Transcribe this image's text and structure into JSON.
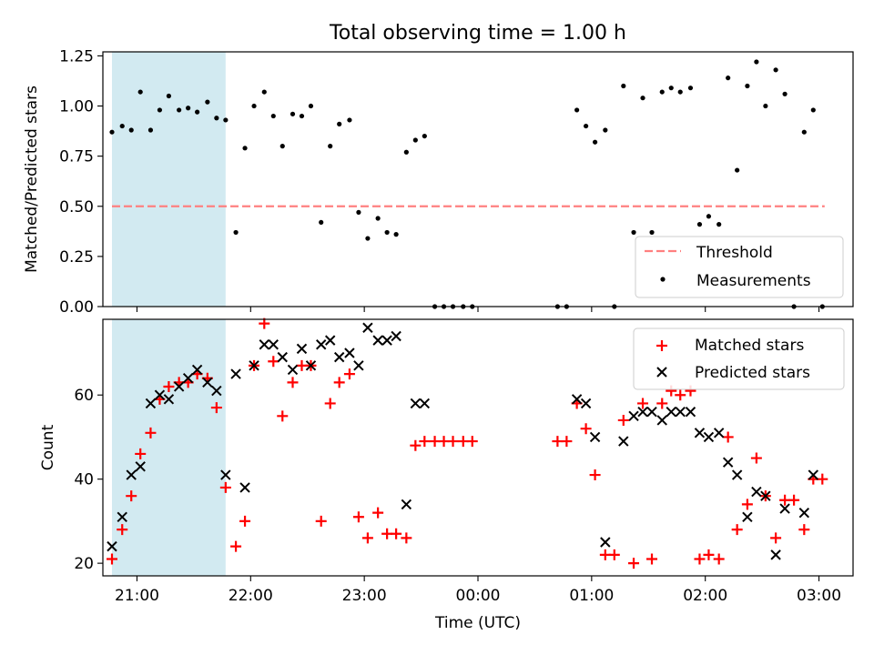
{
  "figure_title": "Total observing time = 1.00 h",
  "chart_data": [
    {
      "type": "scatter",
      "panel": "top",
      "title": "Total observing time = 1.00 h",
      "xlabel": "",
      "ylabel": "Matched/Predicted stars",
      "xlim": [
        -3.3,
        3.3
      ],
      "ylim": [
        0,
        1.27
      ],
      "yticks": [
        0.0,
        0.25,
        0.5,
        0.75,
        1.0,
        1.25
      ],
      "ytick_labels": [
        "0.00",
        "0.25",
        "0.50",
        "0.75",
        "1.00",
        "1.25"
      ],
      "xticks": [
        -3,
        -2,
        -1,
        0,
        1,
        2,
        3
      ],
      "shaded_span": {
        "x": [
          -3.22,
          -2.22
        ],
        "color": "#add8e6"
      },
      "legend": {
        "position": "lower right",
        "entries": [
          "Threshold",
          "Measurements"
        ]
      },
      "threshold": {
        "name": "Threshold",
        "y": 0.5,
        "x": [
          -3.22,
          3.05
        ],
        "color": "#ff8080",
        "style": "dashed"
      },
      "series": [
        {
          "name": "Measurements",
          "color": "#000000",
          "marker": "dot",
          "x": [
            -3.22,
            -3.13,
            -3.05,
            -2.97,
            -2.88,
            -2.8,
            -2.72,
            -2.63,
            -2.55,
            -2.47,
            -2.38,
            -2.3,
            -2.22,
            -2.13,
            -2.05,
            -1.97,
            -1.88,
            -1.8,
            -1.72,
            -1.63,
            -1.55,
            -1.47,
            -1.38,
            -1.3,
            -1.22,
            -1.13,
            -1.05,
            -0.97,
            -0.88,
            -0.8,
            -0.72,
            -0.63,
            -0.55,
            -0.47,
            -0.38,
            -0.3,
            -0.22,
            -0.13,
            -0.05,
            0.7,
            0.78,
            0.87,
            0.95,
            1.03,
            1.12,
            1.2,
            1.28,
            1.37,
            1.45,
            1.53,
            1.62,
            1.7,
            1.78,
            1.87,
            1.95,
            2.03,
            2.12,
            2.2,
            2.28,
            2.37,
            2.45,
            2.53,
            2.62,
            2.7,
            2.78,
            2.87,
            2.95,
            3.03
          ],
          "y": [
            0.87,
            0.9,
            0.88,
            1.07,
            0.88,
            0.98,
            1.05,
            0.98,
            0.99,
            0.97,
            1.02,
            0.94,
            0.93,
            0.37,
            0.79,
            1.0,
            1.07,
            0.95,
            0.8,
            0.96,
            0.95,
            1.0,
            0.42,
            0.8,
            0.91,
            0.93,
            0.47,
            0.34,
            0.44,
            0.37,
            0.36,
            0.77,
            0.83,
            0.85,
            0.0,
            0.0,
            0.0,
            0.0,
            0.0,
            0.0,
            0.0,
            0.98,
            0.9,
            0.82,
            0.88,
            0.0,
            1.1,
            0.37,
            1.04,
            0.37,
            1.07,
            1.09,
            1.07,
            1.09,
            0.41,
            0.45,
            0.41,
            1.14,
            0.68,
            1.1,
            1.22,
            1.0,
            1.18,
            1.06,
            0.0,
            0.87,
            0.98,
            0.0
          ]
        }
      ]
    },
    {
      "type": "scatter",
      "panel": "bottom",
      "xlabel": "Time (UTC)",
      "ylabel": "Count",
      "xlim": [
        -3.3,
        3.3
      ],
      "ylim": [
        17,
        78
      ],
      "yticks": [
        20,
        40,
        60
      ],
      "ytick_labels": [
        "20",
        "40",
        "60"
      ],
      "xticks": [
        -3,
        -2,
        -1,
        0,
        1,
        2,
        3
      ],
      "xtick_labels": [
        "21:00",
        "22:00",
        "23:00",
        "00:00",
        "01:00",
        "02:00",
        "03:00"
      ],
      "shaded_span": {
        "x": [
          -3.22,
          -2.22
        ],
        "color": "#add8e6"
      },
      "legend": {
        "position": "upper right",
        "entries": [
          "Matched stars",
          "Predicted stars"
        ]
      },
      "series": [
        {
          "name": "Matched stars",
          "color": "#ff0000",
          "marker": "plus",
          "x": [
            -3.22,
            -3.13,
            -3.05,
            -2.97,
            -2.88,
            -2.8,
            -2.72,
            -2.63,
            -2.55,
            -2.47,
            -2.38,
            -2.3,
            -2.22,
            -2.13,
            -2.05,
            -1.97,
            -1.88,
            -1.8,
            -1.72,
            -1.63,
            -1.55,
            -1.47,
            -1.38,
            -1.3,
            -1.22,
            -1.13,
            -1.05,
            -0.97,
            -0.88,
            -0.8,
            -0.72,
            -0.63,
            -0.55,
            -0.47,
            -0.38,
            -0.3,
            -0.22,
            -0.13,
            -0.05,
            0.7,
            0.78,
            0.87,
            0.95,
            1.03,
            1.12,
            1.2,
            1.28,
            1.37,
            1.45,
            1.53,
            1.62,
            1.7,
            1.78,
            1.87,
            1.95,
            2.03,
            2.12,
            2.2,
            2.28,
            2.37,
            2.45,
            2.53,
            2.62,
            2.7,
            2.78,
            2.87,
            2.95,
            3.03
          ],
          "y": [
            21,
            28,
            36,
            46,
            51,
            59,
            62,
            63,
            63,
            65,
            64,
            57,
            38,
            24,
            30,
            67,
            77,
            68,
            55,
            63,
            67,
            67,
            30,
            58,
            63,
            65,
            31,
            26,
            32,
            27,
            27,
            26,
            48,
            49,
            49,
            49,
            49,
            49,
            49,
            49,
            49,
            58,
            52,
            41,
            22,
            22,
            54,
            20,
            58,
            21,
            58,
            61,
            60,
            61,
            21,
            22,
            21,
            50,
            28,
            34,
            45,
            36,
            26,
            35,
            35,
            28,
            40,
            40
          ]
        },
        {
          "name": "Predicted stars",
          "color": "#000000",
          "marker": "x",
          "x": [
            -3.22,
            -3.13,
            -3.05,
            -2.97,
            -2.88,
            -2.8,
            -2.72,
            -2.63,
            -2.55,
            -2.47,
            -2.38,
            -2.3,
            -2.22,
            -2.13,
            -2.05,
            -1.97,
            -1.88,
            -1.8,
            -1.72,
            -1.63,
            -1.55,
            -1.47,
            -1.38,
            -1.3,
            -1.22,
            -1.13,
            -1.05,
            -0.97,
            -0.88,
            -0.8,
            -0.72,
            -0.63,
            -0.55,
            -0.47,
            0.87,
            0.95,
            1.03,
            1.12,
            1.28,
            1.37,
            1.45,
            1.53,
            1.62,
            1.7,
            1.78,
            1.87,
            1.95,
            2.03,
            2.12,
            2.2,
            2.28,
            2.37,
            2.45,
            2.53,
            2.62,
            2.7,
            2.87,
            2.95
          ],
          "y": [
            24,
            31,
            41,
            43,
            58,
            60,
            59,
            62,
            64,
            66,
            63,
            61,
            41,
            65,
            38,
            67,
            72,
            72,
            69,
            66,
            71,
            67,
            72,
            73,
            69,
            70,
            67,
            76,
            73,
            73,
            74,
            34,
            58,
            58,
            59,
            58,
            50,
            25,
            49,
            55,
            56,
            56,
            54,
            56,
            56,
            56,
            51,
            50,
            51,
            44,
            41,
            31,
            37,
            36,
            22,
            33,
            32,
            41
          ]
        }
      ]
    }
  ]
}
